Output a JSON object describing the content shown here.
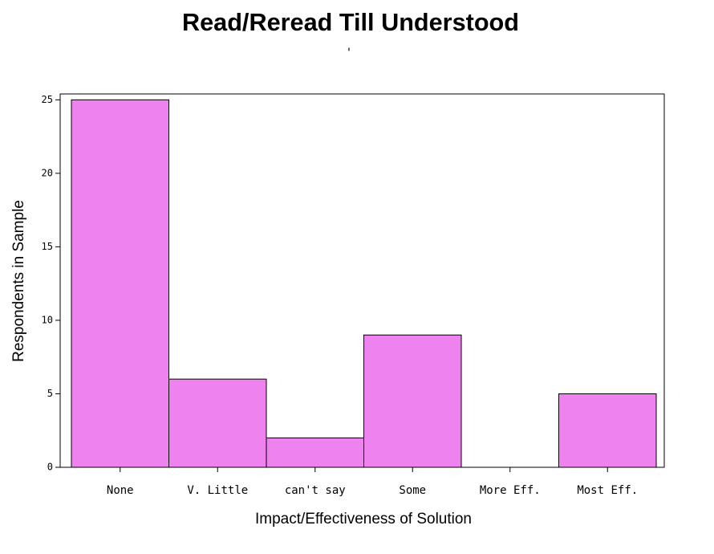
{
  "chart_data": {
    "type": "bar",
    "title": "Read/Reread Till Understood",
    "subtitle": "'",
    "x_label": "Impact/Effectiveness of Solution",
    "y_label": "Respondents in Sample",
    "categories": [
      "None",
      "V. Little",
      "can't say",
      "Some",
      "More Eff.",
      "Most Eff."
    ],
    "values": [
      25,
      6,
      2,
      9,
      0,
      5
    ],
    "color": "#ee82ee",
    "ylim": [
      0,
      25.4
    ],
    "yticks": [
      0,
      5,
      10,
      15,
      20,
      25
    ]
  }
}
